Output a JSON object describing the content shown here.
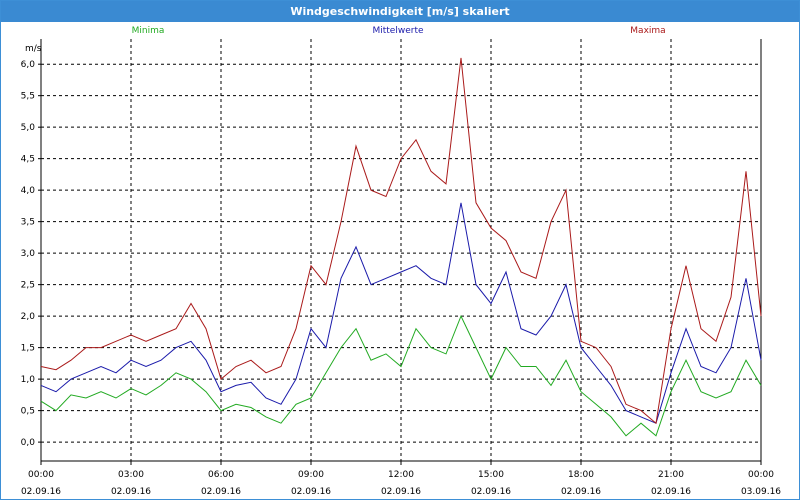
{
  "window": {
    "title": "Windgeschwindigkeit [m/s] skaliert"
  },
  "chart_data": {
    "type": "line",
    "title": "Windgeschwindigkeit [m/s] skaliert",
    "ylabel": "m/s",
    "xlabel": "",
    "ylim": [
      -0.3,
      6.4
    ],
    "xlim": [
      0,
      24
    ],
    "grid": true,
    "legend": "top",
    "yticks": [
      0,
      0.5,
      1,
      1.5,
      2,
      2.5,
      3,
      3.5,
      4,
      4.5,
      5,
      5.5,
      6
    ],
    "ytick_labels": [
      "0,0",
      "0,5",
      "1,0",
      "1,5",
      "2,0",
      "2,5",
      "3,0",
      "3,5",
      "4,0",
      "4,5",
      "5,0",
      "5,5",
      "6,0"
    ],
    "xticks": [
      0,
      3,
      6,
      9,
      12,
      15,
      18,
      21,
      24
    ],
    "xtick_labels": [
      {
        "time": "00:00",
        "date": "02.09.16"
      },
      {
        "time": "03:00",
        "date": "02.09.16"
      },
      {
        "time": "06:00",
        "date": "02.09.16"
      },
      {
        "time": "09:00",
        "date": "02.09.16"
      },
      {
        "time": "12:00",
        "date": "02.09.16"
      },
      {
        "time": "15:00",
        "date": "02.09.16"
      },
      {
        "time": "18:00",
        "date": "02.09.16"
      },
      {
        "time": "21:00",
        "date": "02.09.16"
      },
      {
        "time": "00:00",
        "date": "03.09.16"
      }
    ],
    "x": [
      0,
      0.5,
      1,
      1.5,
      2,
      2.5,
      3,
      3.5,
      4,
      4.5,
      5,
      5.5,
      6,
      6.5,
      7,
      7.5,
      8,
      8.5,
      9,
      9.5,
      10,
      10.5,
      11,
      11.5,
      12,
      12.5,
      13,
      13.5,
      14,
      14.5,
      15,
      15.5,
      16,
      16.5,
      17,
      17.5,
      18,
      18.5,
      19,
      19.5,
      20,
      20.5,
      21,
      21.5,
      22,
      22.5,
      23,
      23.5,
      24
    ],
    "series": [
      {
        "name": "Minima",
        "color": "#22aa22",
        "values": [
          0.65,
          0.5,
          0.75,
          0.7,
          0.8,
          0.7,
          0.85,
          0.75,
          0.9,
          1.1,
          1.0,
          0.8,
          0.5,
          0.6,
          0.55,
          0.4,
          0.3,
          0.6,
          0.7,
          1.1,
          1.5,
          1.8,
          1.3,
          1.4,
          1.2,
          1.8,
          1.5,
          1.4,
          2.0,
          1.5,
          1.0,
          1.5,
          1.2,
          1.2,
          0.9,
          1.3,
          0.8,
          0.6,
          0.4,
          0.1,
          0.3,
          0.1,
          0.8,
          1.3,
          0.8,
          0.7,
          0.8,
          1.3,
          0.9
        ]
      },
      {
        "name": "Mittelwerte",
        "color": "#1a1aaa",
        "values": [
          0.9,
          0.8,
          1.0,
          1.1,
          1.2,
          1.1,
          1.3,
          1.2,
          1.3,
          1.5,
          1.6,
          1.3,
          0.8,
          0.9,
          0.95,
          0.7,
          0.6,
          1.0,
          1.8,
          1.5,
          2.6,
          3.1,
          2.5,
          2.6,
          2.7,
          2.8,
          2.6,
          2.5,
          3.8,
          2.5,
          2.2,
          2.7,
          1.8,
          1.7,
          2.0,
          2.5,
          1.5,
          1.2,
          0.9,
          0.5,
          0.4,
          0.3,
          1.1,
          1.8,
          1.2,
          1.1,
          1.5,
          2.6,
          1.3
        ]
      },
      {
        "name": "Maxima",
        "color": "#aa1a1a",
        "values": [
          1.2,
          1.15,
          1.3,
          1.5,
          1.5,
          1.6,
          1.7,
          1.6,
          1.7,
          1.8,
          2.2,
          1.8,
          1.0,
          1.2,
          1.3,
          1.1,
          1.2,
          1.8,
          2.8,
          2.5,
          3.5,
          4.7,
          4.0,
          3.9,
          4.5,
          4.8,
          4.3,
          4.1,
          6.1,
          3.8,
          3.4,
          3.2,
          2.7,
          2.6,
          3.5,
          4.0,
          1.6,
          1.5,
          1.2,
          0.6,
          0.5,
          0.3,
          1.8,
          2.8,
          1.8,
          1.6,
          2.3,
          4.3,
          2.0
        ]
      }
    ]
  }
}
